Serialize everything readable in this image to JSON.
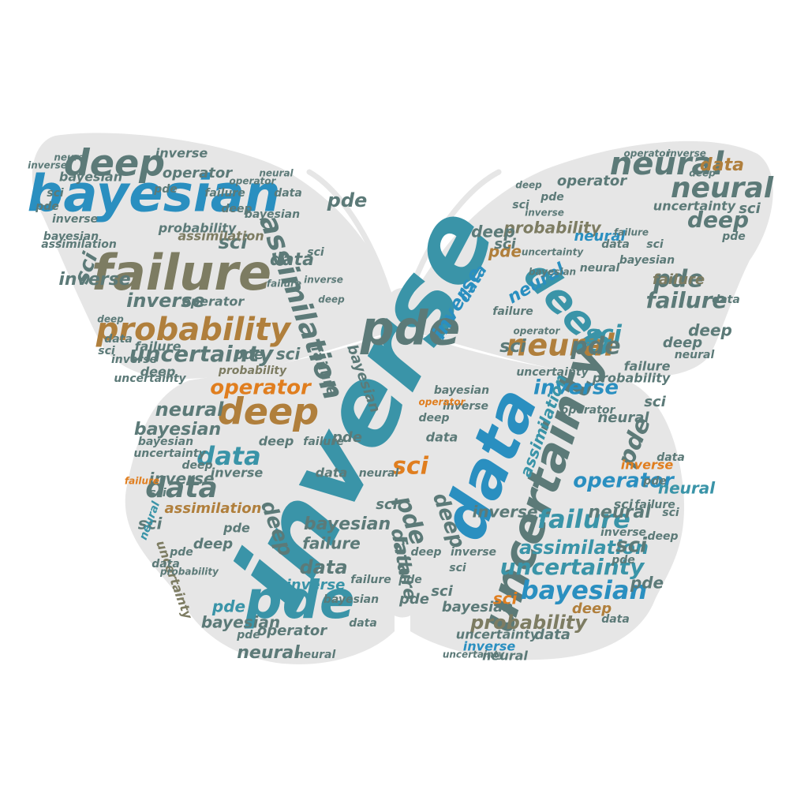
{
  "palette": {
    "teal": "#3a94a8",
    "blue": "#2a8fc0",
    "olive": "#7d7c62",
    "slate": "#5c7a78",
    "brown": "#b07f3c",
    "orange": "#e07e1f",
    "wing": "#e6e6e6"
  },
  "shape": "butterfly",
  "words": {
    "inverse": "inverse",
    "data": "data",
    "uncertainty": "uncertainty",
    "bayesian": "bayesian",
    "failure": "failure",
    "probability": "probability",
    "assimilation": "assimilation",
    "deep": "deep",
    "neural": "neural",
    "pde": "pde",
    "operator": "operator",
    "sci": "sci"
  }
}
